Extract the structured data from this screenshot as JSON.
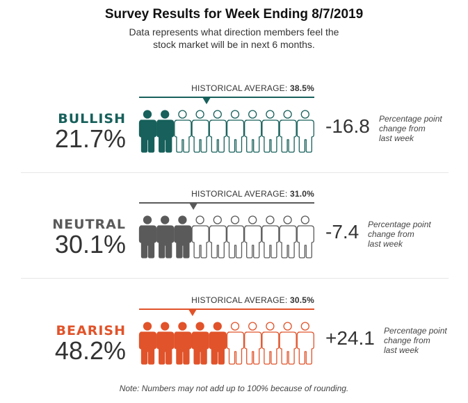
{
  "title": "Survey Results for Week Ending 8/7/2019",
  "subtitle": {
    "line1": "Data represents what direction members feel the",
    "line2": "stock market will be in next 6 months."
  },
  "historical_label": "HISTORICAL AVERAGE:",
  "change_note": {
    "line1": "Percentage point",
    "line2": "change from",
    "line3": "last week"
  },
  "note": "Note: Numbers may not add up to 100% because of rounding.",
  "chart_data": {
    "type": "pictograph",
    "icons_per_row": 10,
    "categories": [
      {
        "name": "BULLISH",
        "percent": 21.7,
        "percent_label": "21.7%",
        "filled_icons": 2,
        "historical_average": 38.5,
        "historical_label": "38.5%",
        "change": -16.8,
        "change_label": "-16.8",
        "color": "#17605b"
      },
      {
        "name": "NEUTRAL",
        "percent": 30.1,
        "percent_label": "30.1%",
        "filled_icons": 3,
        "historical_average": 31.0,
        "historical_label": "31.0%",
        "change": -7.4,
        "change_label": "-7.4",
        "color": "#5a5a5a"
      },
      {
        "name": "BEARISH",
        "percent": 48.2,
        "percent_label": "48.2%",
        "filled_icons": 5,
        "historical_average": 30.5,
        "historical_label": "30.5%",
        "change": 24.1,
        "change_label": "+24.1",
        "color": "#e1532a"
      }
    ]
  }
}
